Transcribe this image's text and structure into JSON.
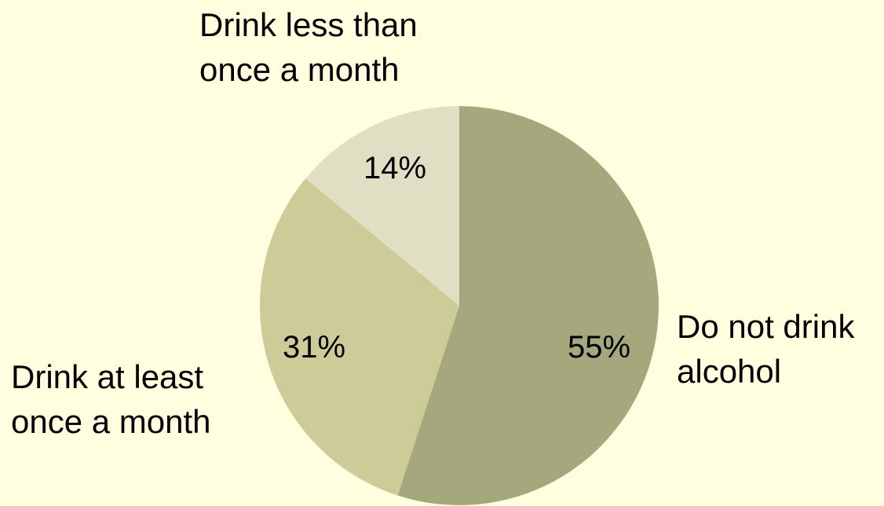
{
  "chart_data": {
    "type": "pie",
    "title": "",
    "background": "#FFFFE0",
    "slices": [
      {
        "label_lines": [
          "Do not drink",
          "alcohol"
        ],
        "value": 55,
        "value_label": "55%",
        "color": "#A5A87D"
      },
      {
        "label_lines": [
          "Drink at least",
          "once a month"
        ],
        "value": 31,
        "value_label": "31%",
        "color": "#CDCC98"
      },
      {
        "label_lines": [
          "Drink less than",
          "once a month"
        ],
        "value": 14,
        "value_label": "14%",
        "color": "#E0DFC4"
      }
    ]
  }
}
